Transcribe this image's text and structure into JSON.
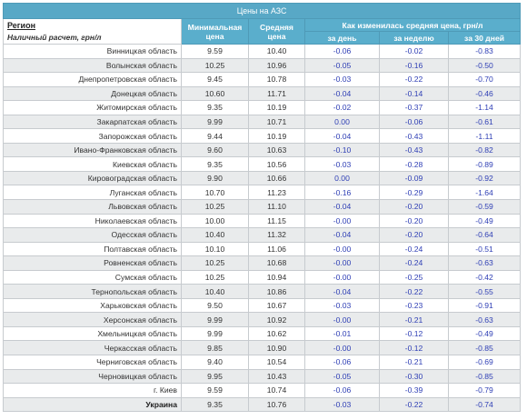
{
  "caption": "Цены на АЗС",
  "headers": {
    "region": "Регион",
    "region_note": "Наличный расчет, грн/л",
    "min_price": "Минимальная цена",
    "min_price_l1": "Минимальная",
    "min_price_l2": "цена",
    "avg_price_l1": "Средняя",
    "avg_price_l2": "цена",
    "change": "Как изменилась средняя цена, грн/л",
    "per_day": "за день",
    "per_week": "за неделю",
    "per_30_days": "за 30 дней"
  },
  "rows": [
    {
      "region": "Винницкая область",
      "min": "9.59",
      "avg": "10.40",
      "day": "-0.06",
      "week": "-0.02",
      "month": "-0.83"
    },
    {
      "region": "Волынская область",
      "min": "10.25",
      "avg": "10.96",
      "day": "-0.05",
      "week": "-0.16",
      "month": "-0.50"
    },
    {
      "region": "Днепропетровская область",
      "min": "9.45",
      "avg": "10.78",
      "day": "-0.03",
      "week": "-0.22",
      "month": "-0.70"
    },
    {
      "region": "Донецкая область",
      "min": "10.60",
      "avg": "11.71",
      "day": "-0.04",
      "week": "-0.14",
      "month": "-0.46"
    },
    {
      "region": "Житомирская область",
      "min": "9.35",
      "avg": "10.19",
      "day": "-0.02",
      "week": "-0.37",
      "month": "-1.14"
    },
    {
      "region": "Закарпатская область",
      "min": "9.99",
      "avg": "10.71",
      "day": "0.00",
      "week": "-0.06",
      "month": "-0.61"
    },
    {
      "region": "Запорожская область",
      "min": "9.44",
      "avg": "10.19",
      "day": "-0.04",
      "week": "-0.43",
      "month": "-1.11"
    },
    {
      "region": "Ивано-Франковская область",
      "min": "9.60",
      "avg": "10.63",
      "day": "-0.10",
      "week": "-0.43",
      "month": "-0.82"
    },
    {
      "region": "Киевская область",
      "min": "9.35",
      "avg": "10.56",
      "day": "-0.03",
      "week": "-0.28",
      "month": "-0.89"
    },
    {
      "region": "Кировоградская область",
      "min": "9.90",
      "avg": "10.66",
      "day": "0.00",
      "week": "-0.09",
      "month": "-0.92"
    },
    {
      "region": "Луганская область",
      "min": "10.70",
      "avg": "11.23",
      "day": "-0.16",
      "week": "-0.29",
      "month": "-1.64"
    },
    {
      "region": "Львовская область",
      "min": "10.25",
      "avg": "11.10",
      "day": "-0.04",
      "week": "-0.20",
      "month": "-0.59"
    },
    {
      "region": "Николаевская область",
      "min": "10.00",
      "avg": "11.15",
      "day": "-0.00",
      "week": "-0.20",
      "month": "-0.49"
    },
    {
      "region": "Одесская область",
      "min": "10.40",
      "avg": "11.32",
      "day": "-0.04",
      "week": "-0.20",
      "month": "-0.64"
    },
    {
      "region": "Полтавская область",
      "min": "10.10",
      "avg": "11.06",
      "day": "-0.00",
      "week": "-0.24",
      "month": "-0.51"
    },
    {
      "region": "Ровненская область",
      "min": "10.25",
      "avg": "10.68",
      "day": "-0.00",
      "week": "-0.24",
      "month": "-0.63"
    },
    {
      "region": "Сумская область",
      "min": "10.25",
      "avg": "10.94",
      "day": "-0.00",
      "week": "-0.25",
      "month": "-0.42"
    },
    {
      "region": "Тернопольская область",
      "min": "10.40",
      "avg": "10.86",
      "day": "-0.04",
      "week": "-0.22",
      "month": "-0.55"
    },
    {
      "region": "Харьковская область",
      "min": "9.50",
      "avg": "10.67",
      "day": "-0.03",
      "week": "-0.23",
      "month": "-0.91"
    },
    {
      "region": "Херсонская область",
      "min": "9.99",
      "avg": "10.92",
      "day": "-0.00",
      "week": "-0.21",
      "month": "-0.63"
    },
    {
      "region": "Хмельницкая область",
      "min": "9.99",
      "avg": "10.62",
      "day": "-0.01",
      "week": "-0.12",
      "month": "-0.49"
    },
    {
      "region": "Черкасская область",
      "min": "9.85",
      "avg": "10.90",
      "day": "-0.00",
      "week": "-0.12",
      "month": "-0.85"
    },
    {
      "region": "Черниговская область",
      "min": "9.40",
      "avg": "10.54",
      "day": "-0.06",
      "week": "-0.21",
      "month": "-0.69"
    },
    {
      "region": "Черновицкая область",
      "min": "9.95",
      "avg": "10.43",
      "day": "-0.05",
      "week": "-0.30",
      "month": "-0.85"
    },
    {
      "region": "г. Киев",
      "min": "9.59",
      "avg": "10.74",
      "day": "-0.06",
      "week": "-0.39",
      "month": "-0.79"
    },
    {
      "region": "Украина",
      "min": "9.35",
      "avg": "10.76",
      "day": "-0.03",
      "week": "-0.22",
      "month": "-0.74"
    }
  ],
  "colors": {
    "header_bg": "#5aaecc",
    "header_text": "#ffffff",
    "change_value": "#2f3fb5",
    "alt_row": "#e9ebec"
  }
}
